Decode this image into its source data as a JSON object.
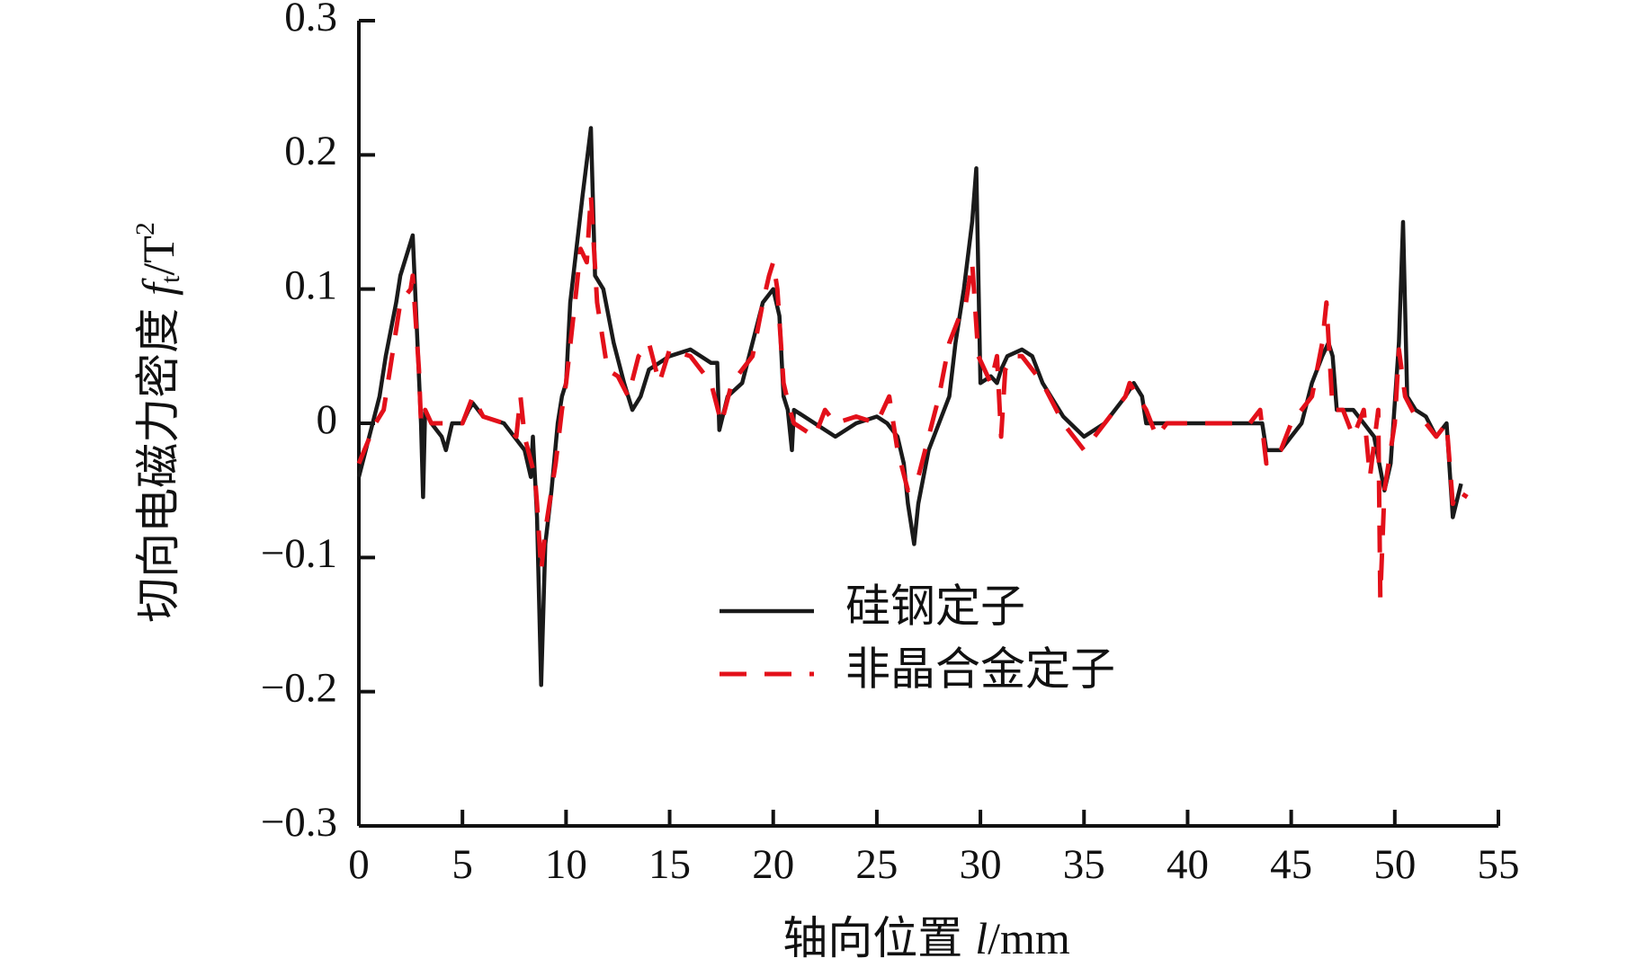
{
  "chart_data": {
    "type": "line",
    "y_label": {
      "text": "切向电磁力密度",
      "symbol": "f",
      "subscript": "t",
      "unit": "/T",
      "superscript": "2"
    },
    "x_label": {
      "text": "轴向位置",
      "symbol": "l",
      "unit": "/mm"
    },
    "xlim": [
      0,
      55
    ],
    "xticks": [
      0,
      5,
      10,
      15,
      20,
      25,
      30,
      35,
      40,
      45,
      50,
      55
    ],
    "ylim": [
      -0.3,
      0.3
    ],
    "yticks": [
      {
        "value": -0.3,
        "label": "−0.3"
      },
      {
        "value": -0.2,
        "label": "−0.2"
      },
      {
        "value": -0.1,
        "label": "−0.1"
      },
      0,
      0.1,
      0.2,
      0.3
    ],
    "legend": "center",
    "series": [
      {
        "name": "硅钢定子",
        "color": "#1a1a1a",
        "dash": false,
        "x": [
          0,
          0.5,
          1,
          1.3,
          1.8,
          2.0,
          2.4,
          2.6,
          3.0,
          3.1,
          3.2,
          3.5,
          4.0,
          4.2,
          4.5,
          5.0,
          5.3,
          5.5,
          6.0,
          7.0,
          8.0,
          8.3,
          8.4,
          8.6,
          8.8,
          9.0,
          9.3,
          9.6,
          9.8,
          10.0,
          10.2,
          10.5,
          10.8,
          11.2,
          11.4,
          11.8,
          12.3,
          12.8,
          13.2,
          13.6,
          14.0,
          15.0,
          16.0,
          17.0,
          17.3,
          17.4,
          17.8,
          18.5,
          19.0,
          19.5,
          20.0,
          20.3,
          20.5,
          20.7,
          20.9,
          21.0,
          22.0,
          23.0,
          24.0,
          25.0,
          25.5,
          26.0,
          26.3,
          26.5,
          26.8,
          27.0,
          27.5,
          28.0,
          28.5,
          28.8,
          29.2,
          29.6,
          29.8,
          30.0,
          30.5,
          30.8,
          31.0,
          31.3,
          32.0,
          32.5,
          33.0,
          34.0,
          35.0,
          36.0,
          37.0,
          37.4,
          37.8,
          38.0,
          39.0,
          40.0,
          41.0,
          42.0,
          43.0,
          43.6,
          43.8,
          44.5,
          45.0,
          45.5,
          46.0,
          46.5,
          46.8,
          47.0,
          47.2,
          48.0,
          48.5,
          49.0,
          49.5,
          49.8,
          50.2,
          50.4,
          50.6,
          51.0,
          51.5,
          52.0,
          52.5,
          52.8,
          53.2
        ],
        "values": [
          -0.04,
          -0.01,
          0.02,
          0.05,
          0.09,
          0.11,
          0.13,
          0.14,
          0.0,
          -0.055,
          0.01,
          0.0,
          -0.01,
          -0.02,
          0.0,
          0.0,
          0.01,
          0.015,
          0.005,
          0.0,
          -0.02,
          -0.04,
          -0.01,
          -0.07,
          -0.195,
          -0.09,
          -0.05,
          0.0,
          0.02,
          0.03,
          0.09,
          0.13,
          0.17,
          0.22,
          0.11,
          0.1,
          0.06,
          0.03,
          0.01,
          0.02,
          0.04,
          0.05,
          0.055,
          0.045,
          0.045,
          -0.005,
          0.02,
          0.03,
          0.06,
          0.09,
          0.1,
          0.08,
          0.02,
          0.01,
          -0.02,
          0.01,
          0.0,
          -0.01,
          0.0,
          0.005,
          0.0,
          -0.01,
          -0.03,
          -0.06,
          -0.09,
          -0.06,
          -0.02,
          0.0,
          0.02,
          0.06,
          0.1,
          0.15,
          0.19,
          0.03,
          0.035,
          0.03,
          0.04,
          0.05,
          0.055,
          0.05,
          0.03,
          0.005,
          -0.01,
          0.0,
          0.02,
          0.03,
          0.02,
          0.0,
          0.0,
          0.0,
          0.0,
          0.0,
          0.0,
          0.0,
          -0.02,
          -0.02,
          -0.01,
          0.0,
          0.03,
          0.05,
          0.06,
          0.05,
          0.01,
          0.01,
          0.0,
          -0.01,
          -0.05,
          -0.03,
          0.06,
          0.15,
          0.02,
          0.01,
          0.005,
          -0.01,
          0.0,
          -0.07,
          -0.045
        ]
      },
      {
        "name": "非晶合金定子",
        "color": "#e3101a",
        "dash": true,
        "x": [
          0,
          0.8,
          1.2,
          1.5,
          1.8,
          2.0,
          2.5,
          2.6,
          2.9,
          3.0,
          3.2,
          3.5,
          4.0,
          4.5,
          5.0,
          5.5,
          6.0,
          7.0,
          7.6,
          7.8,
          8.0,
          8.5,
          8.6,
          8.8,
          9.0,
          9.5,
          9.8,
          10.0,
          10.5,
          10.7,
          11.0,
          11.2,
          11.5,
          12.0,
          12.5,
          13.0,
          13.5,
          14.0,
          14.5,
          15.0,
          16.0,
          17.0,
          17.5,
          18.0,
          19.0,
          19.5,
          19.8,
          20.0,
          20.2,
          20.5,
          20.8,
          21.0,
          22.0,
          22.5,
          23.0,
          24.0,
          25.0,
          25.6,
          26.0,
          26.5,
          27.0,
          27.5,
          28.0,
          28.5,
          29.0,
          29.3,
          29.6,
          29.9,
          30.5,
          30.8,
          31.0,
          31.2,
          31.6,
          32.0,
          33.0,
          34.0,
          35.0,
          36.0,
          37.0,
          37.2,
          38.0,
          38.5,
          39.0,
          40.0,
          41.0,
          42.0,
          43.0,
          43.5,
          43.8,
          44.5,
          45.0,
          46.0,
          46.5,
          46.7,
          47.0,
          47.5,
          48.0,
          48.5,
          48.8,
          49.2,
          49.3,
          49.5,
          50.0,
          50.2,
          50.5,
          51.0,
          51.5,
          52.0,
          52.5,
          52.8,
          53.0,
          53.5
        ],
        "values": [
          -0.03,
          0.0,
          0.01,
          0.04,
          0.07,
          0.09,
          0.1,
          0.11,
          0.04,
          0.0,
          0.01,
          0.0,
          0.0,
          0.0,
          0.0,
          0.02,
          0.005,
          0.0,
          -0.01,
          0.02,
          -0.01,
          -0.04,
          -0.06,
          -0.11,
          -0.08,
          -0.03,
          0.01,
          0.03,
          0.1,
          0.13,
          0.12,
          0.17,
          0.09,
          0.04,
          0.035,
          0.02,
          0.05,
          0.06,
          0.03,
          0.055,
          0.05,
          0.03,
          0.0,
          0.03,
          0.05,
          0.09,
          0.11,
          0.12,
          0.1,
          0.03,
          0.01,
          0.0,
          -0.01,
          0.01,
          0.0,
          0.005,
          0.0,
          0.02,
          -0.02,
          -0.05,
          -0.04,
          -0.01,
          0.02,
          0.06,
          0.08,
          0.09,
          0.12,
          0.05,
          0.03,
          0.05,
          -0.01,
          0.04,
          0.05,
          0.05,
          0.03,
          0.0,
          -0.02,
          0.0,
          0.02,
          0.03,
          0.01,
          -0.01,
          0.0,
          0.0,
          0.0,
          0.0,
          0.0,
          0.01,
          -0.03,
          -0.02,
          0.0,
          0.02,
          0.06,
          0.09,
          0.01,
          0.01,
          -0.01,
          0.01,
          -0.04,
          0.01,
          -0.13,
          -0.05,
          0.0,
          0.055,
          0.02,
          0.005,
          0.0,
          -0.01,
          0.0,
          -0.06,
          -0.05,
          -0.055
        ]
      }
    ]
  }
}
